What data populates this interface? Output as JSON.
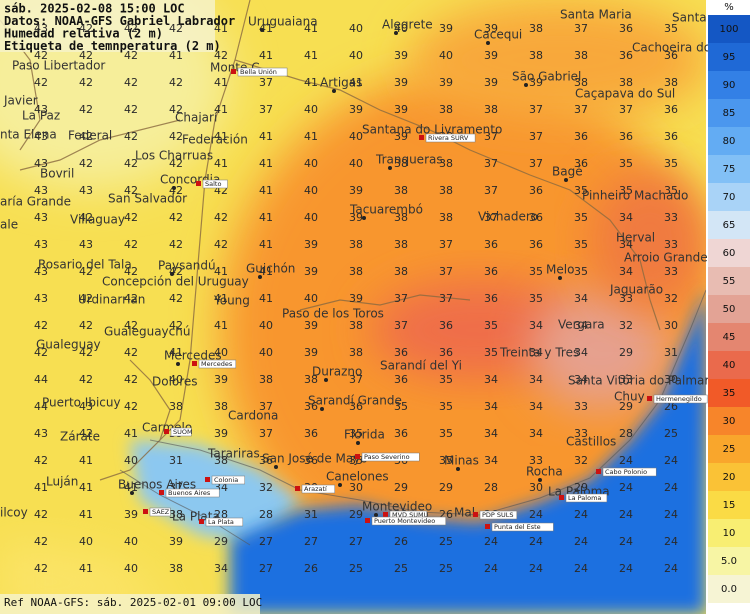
{
  "header": {
    "lines": [
      "sáb. 2025-02-08 15:00 LOC",
      "Datos: NOAA-GFS Gabriel Labrador",
      "Humedad relativa (2 m)",
      "Etiqueta de temnperatura (2 m)"
    ]
  },
  "footer": "Ref NOAA-GFS: sáb. 2025-02-01 09:00 LOC",
  "colorbar": {
    "unit": "%",
    "labels": [
      "100",
      "95",
      "90",
      "85",
      "80",
      "75",
      "70",
      "65",
      "60",
      "55",
      "50",
      "45",
      "40",
      "35",
      "30",
      "25",
      "20",
      "15",
      "10",
      "5.0",
      "0.0"
    ],
    "colors": [
      "#1457c4",
      "#1f69d6",
      "#3380e6",
      "#4b97ee",
      "#63acf3",
      "#82c0f6",
      "#a9d3f7",
      "#d3e6f6",
      "#efd6d4",
      "#e8bcb2",
      "#e3a395",
      "#e48670",
      "#ea6a4c",
      "#f15a28",
      "#f7852a",
      "#f9a62c",
      "#fac236",
      "#fadb45",
      "#f8ee72",
      "#f7f5a4",
      "#f6f4d4"
    ]
  },
  "grid": {
    "rows": [
      [
        43,
        42,
        42,
        42,
        41,
        41,
        41,
        40,
        40,
        39,
        39,
        38,
        37,
        36,
        35
      ],
      [
        42,
        42,
        42,
        41,
        42,
        41,
        41,
        40,
        39,
        40,
        39,
        38,
        38,
        36,
        36
      ],
      [
        42,
        42,
        42,
        42,
        41,
        37,
        41,
        41,
        39,
        39,
        39,
        39,
        38,
        38,
        38
      ],
      [
        43,
        42,
        42,
        42,
        41,
        37,
        40,
        39,
        39,
        38,
        38,
        37,
        37,
        37,
        36
      ],
      [
        43,
        42,
        42,
        42,
        41,
        41,
        41,
        40,
        39,
        38,
        37,
        37,
        36,
        36,
        36
      ],
      [
        43,
        42,
        42,
        42,
        41,
        41,
        40,
        40,
        38,
        38,
        37,
        37,
        36,
        35,
        35
      ],
      [
        43,
        43,
        42,
        42,
        42,
        41,
        40,
        39,
        38,
        38,
        37,
        36,
        35,
        35,
        35
      ],
      [
        43,
        42,
        42,
        42,
        42,
        41,
        40,
        39,
        38,
        38,
        37,
        36,
        35,
        34,
        33
      ],
      [
        43,
        43,
        42,
        42,
        42,
        41,
        39,
        38,
        38,
        37,
        36,
        36,
        35,
        34,
        33
      ],
      [
        43,
        42,
        42,
        42,
        41,
        41,
        39,
        38,
        38,
        37,
        36,
        35,
        35,
        34,
        33
      ],
      [
        43,
        42,
        42,
        42,
        41,
        41,
        40,
        39,
        37,
        37,
        36,
        35,
        34,
        33,
        32
      ],
      [
        42,
        42,
        42,
        42,
        41,
        40,
        39,
        38,
        37,
        36,
        35,
        34,
        34,
        32,
        30
      ],
      [
        42,
        42,
        42,
        41,
        40,
        40,
        39,
        38,
        36,
        36,
        35,
        34,
        34,
        29,
        31
      ],
      [
        44,
        42,
        42,
        40,
        39,
        38,
        38,
        37,
        36,
        35,
        34,
        34,
        34,
        33,
        30
      ],
      [
        44,
        43,
        42,
        38,
        38,
        37,
        36,
        36,
        35,
        35,
        34,
        34,
        33,
        29,
        26
      ],
      [
        43,
        42,
        41,
        39,
        39,
        37,
        36,
        35,
        36,
        35,
        34,
        34,
        33,
        28,
        25
      ],
      [
        42,
        41,
        40,
        31,
        38,
        36,
        36,
        35,
        36,
        35,
        34,
        33,
        32,
        24,
        24
      ],
      [
        41,
        41,
        41,
        37,
        34,
        32,
        30,
        30,
        29,
        29,
        28,
        30,
        29,
        24,
        24
      ],
      [
        42,
        41,
        39,
        38,
        28,
        28,
        31,
        29,
        29,
        26,
        26,
        24,
        24,
        24,
        24
      ],
      [
        42,
        40,
        40,
        39,
        29,
        27,
        27,
        27,
        26,
        25,
        24,
        24,
        24,
        24,
        24
      ],
      [
        42,
        41,
        40,
        38,
        34,
        27,
        26,
        25,
        25,
        25,
        24,
        24,
        24,
        24,
        24
      ]
    ]
  },
  "cities": [
    "Uruguaiana",
    "Alegrete",
    "Santa Maria",
    "Santa",
    "Cacequi",
    "Cachoeira do Sul",
    "Paso Libertador",
    "Monte C",
    "Javier",
    "Artigas",
    "São Gabriel",
    "Caçapava do Sul",
    "La Paz",
    "Chajarí",
    "Federal",
    "Santana do Livramento",
    "Federación",
    "nta Elena",
    "Los Charruas",
    "Tranqueras",
    "Bovril",
    "Concordia",
    "Bagé",
    "Pinheiro Machado",
    "aría Grande",
    "San Salvador",
    "Tacuarembó",
    "Vichadero",
    "ale",
    "Villaguay",
    "Herval",
    "Rosario del Tala",
    "Paysandú",
    "Guichón",
    "Arroio Grande",
    "Concepción del Uruguay",
    "Melo",
    "Jaguarão",
    "Urdinarrian",
    "Young",
    "Paso de los Toros",
    "Vergara",
    "Gualeguaychú",
    "Gualeguay",
    "Mercedes",
    "Treinta y Tres",
    "Durazno",
    "Sarandí del Yi",
    "Dolores",
    "Santa Vitória do Palmar",
    "Puerto Ibicuy",
    "Sarandí Grande",
    "Chuy",
    "Cardona",
    "Carmelo",
    "Zárate",
    "Florida",
    "Castillos",
    "Tarariras",
    "San José de Mayo",
    "Minas",
    "Rocha",
    "Luján",
    "Buenos Aires",
    "Canelones",
    "La Paloma",
    "Montevideo",
    "Mal",
    "ilcoy",
    "La Plata"
  ],
  "stations": [
    "Bella Unión",
    "Rivera SURV",
    "Salto",
    "Mercedes",
    "SUOM",
    "Paso Severino",
    "Colonia",
    "Buenos Aires",
    "Arazatí",
    "Cabo Polonio",
    "La Paloma",
    "MVD SUMU",
    "Puerto Montevideo",
    "PDP SULS",
    "Punta del Este",
    "SAEZ",
    "La Plata",
    "Hermenegildo"
  ]
}
